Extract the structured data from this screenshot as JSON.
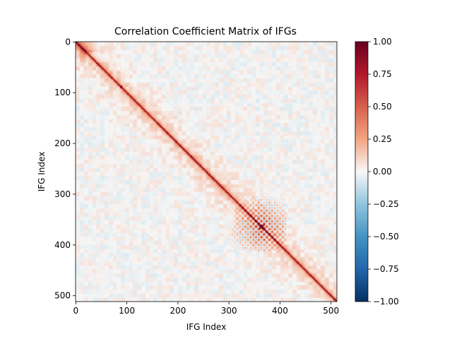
{
  "chart_data": {
    "type": "heatmap",
    "title": "Correlation Coefficient Matrix of IFGs",
    "xlabel": "IFG Index",
    "ylabel": "IFG Index",
    "matrix_size": 512,
    "x_ticks": [
      "0",
      "100",
      "200",
      "300",
      "400",
      "500"
    ],
    "y_ticks": [
      "0",
      "100",
      "200",
      "300",
      "400",
      "500"
    ],
    "x_tick_values": [
      0,
      100,
      200,
      300,
      400,
      500
    ],
    "y_tick_values": [
      0,
      100,
      200,
      300,
      400,
      500
    ],
    "colormap": "RdBu_r",
    "vmin": -1.0,
    "vmax": 1.0,
    "colorbar_ticks": [
      "1.00",
      "0.75",
      "0.50",
      "0.25",
      "0.00",
      "−0.25",
      "−0.50",
      "−0.75",
      "−1.00"
    ],
    "colorbar_tick_values": [
      1.0,
      0.75,
      0.5,
      0.25,
      0.0,
      -0.25,
      -0.5,
      -0.75,
      -1.0
    ],
    "features": {
      "diagonal_value": 1.0,
      "high_correlation_block": {
        "start_index": 305,
        "end_index": 410,
        "value_range": [
          -0.6,
          0.95
        ]
      },
      "secondary_peak_index": 88
    },
    "colors": {
      "dark_red": "#67001f",
      "red": "#d6604d",
      "light_red": "#f4a582",
      "white": "#f7f7f7",
      "light_blue": "#92c5de",
      "blue": "#4393c3",
      "dark_blue": "#053061"
    }
  }
}
